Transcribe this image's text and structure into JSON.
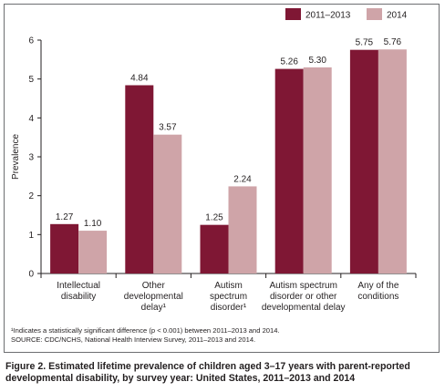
{
  "chart_data": {
    "type": "bar",
    "categories": [
      [
        "Intellectual",
        "disability"
      ],
      [
        "Other",
        "developmental",
        "delay¹"
      ],
      [
        "Autism",
        "spectrum",
        "disorder¹"
      ],
      [
        "Autism spectrum",
        "disorder or other",
        "developmental delay"
      ],
      [
        "Any of the",
        "conditions"
      ]
    ],
    "series": [
      {
        "name": "2011–2013",
        "values": [
          1.27,
          4.84,
          1.25,
          5.26,
          5.75
        ],
        "labels": [
          "1.27",
          "4.84",
          "1.25",
          "5.26",
          "5.75"
        ],
        "color": "#7f1734"
      },
      {
        "name": "2014",
        "values": [
          1.1,
          3.57,
          2.24,
          5.3,
          5.76
        ],
        "labels": [
          "1.10",
          "3.57",
          "2.24",
          "5.30",
          "5.76"
        ],
        "color": "#cfa4a8"
      }
    ],
    "ylabel": "Prevalence",
    "xlabel": "",
    "ylim": [
      0,
      6
    ],
    "yticks": [
      "0",
      "1",
      "2",
      "3",
      "4",
      "5",
      "6"
    ],
    "legend_position": "top-right",
    "grid": false
  },
  "footnotes": {
    "line1": "¹Indicates a statistically significant difference (p < 0.001) between 2011–2013 and 2014.",
    "line2": "SOURCE: CDC/NCHS, National Health Interview Survey, 2011–2013 and 2014."
  },
  "caption": "Figure 2. Estimated lifetime prevalence of children aged 3–17 years with parent-reported developmental disability, by survey year: United States, 2011–2013 and 2014"
}
